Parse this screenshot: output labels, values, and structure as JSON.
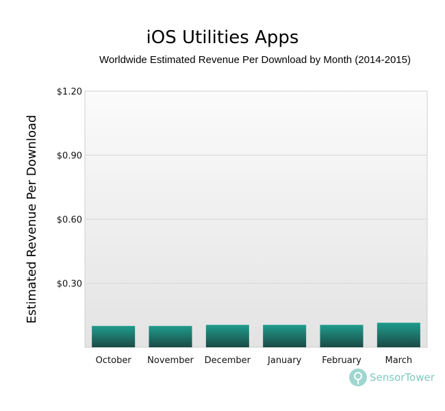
{
  "chart_data": {
    "type": "bar",
    "title": "iOS Utilities Apps",
    "subtitle": "Worldwide Estimated Revenue Per Download by Month (2014-2015)",
    "xlabel": "",
    "ylabel": "Estimated Revenue Per Download",
    "categories": [
      "October",
      "November",
      "December",
      "January",
      "February",
      "March"
    ],
    "values": [
      0.1,
      0.1,
      0.105,
      0.105,
      0.105,
      0.115
    ],
    "ylim": [
      0,
      1.2
    ],
    "yticks": [
      0.3,
      0.6,
      0.9,
      1.2
    ],
    "ytick_labels": [
      "$0.30",
      "$0.60",
      "$0.90",
      "$1.20"
    ],
    "grid": true,
    "colors": {
      "bar_top": "#1f9c8c",
      "bar_bottom": "#1b4a45",
      "plot_bg_top": "#fbfbfb",
      "plot_bg_bottom": "#e3e3e3",
      "grid": "#d6d6d6",
      "axis": "#cfcfcf"
    }
  },
  "branding": {
    "text": "SensorTower",
    "icon": "sensor-tower-logo-icon"
  }
}
